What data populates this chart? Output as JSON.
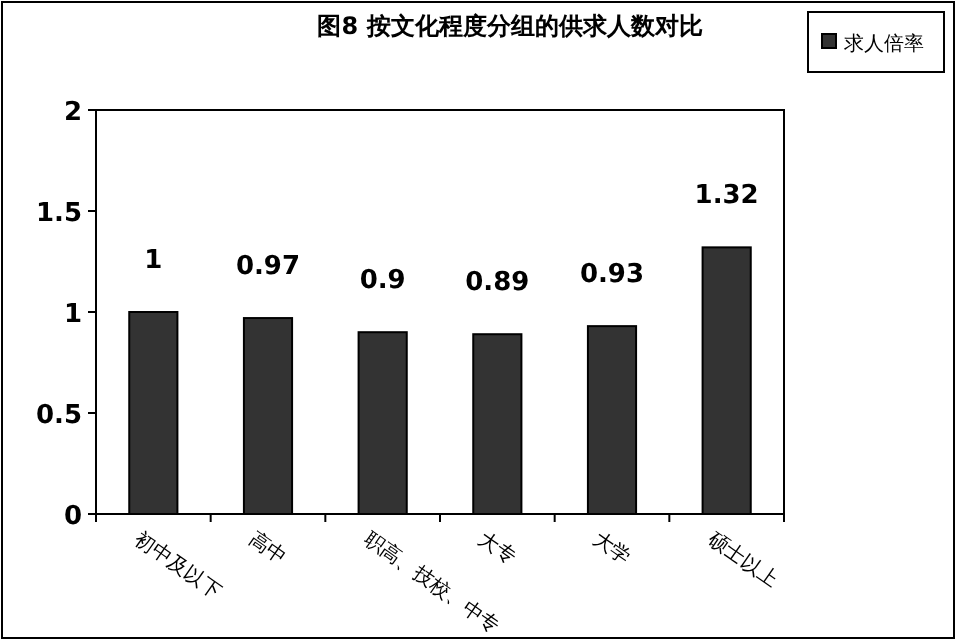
{
  "chart_data": {
    "type": "bar",
    "title": "图8 按文化程度分组的供求人数对比",
    "categories": [
      "初中及以下",
      "高中",
      "职高、技校、中专",
      "大专",
      "大学",
      "硕士以上"
    ],
    "series": [
      {
        "name": "求人倍率",
        "color": "#333333",
        "values": [
          1,
          0.97,
          0.9,
          0.89,
          0.93,
          1.32
        ]
      }
    ],
    "ylim": [
      0,
      2
    ],
    "yticks": [
      0,
      0.5,
      1,
      1.5,
      2
    ],
    "data_labels": true,
    "legend": "top right"
  }
}
